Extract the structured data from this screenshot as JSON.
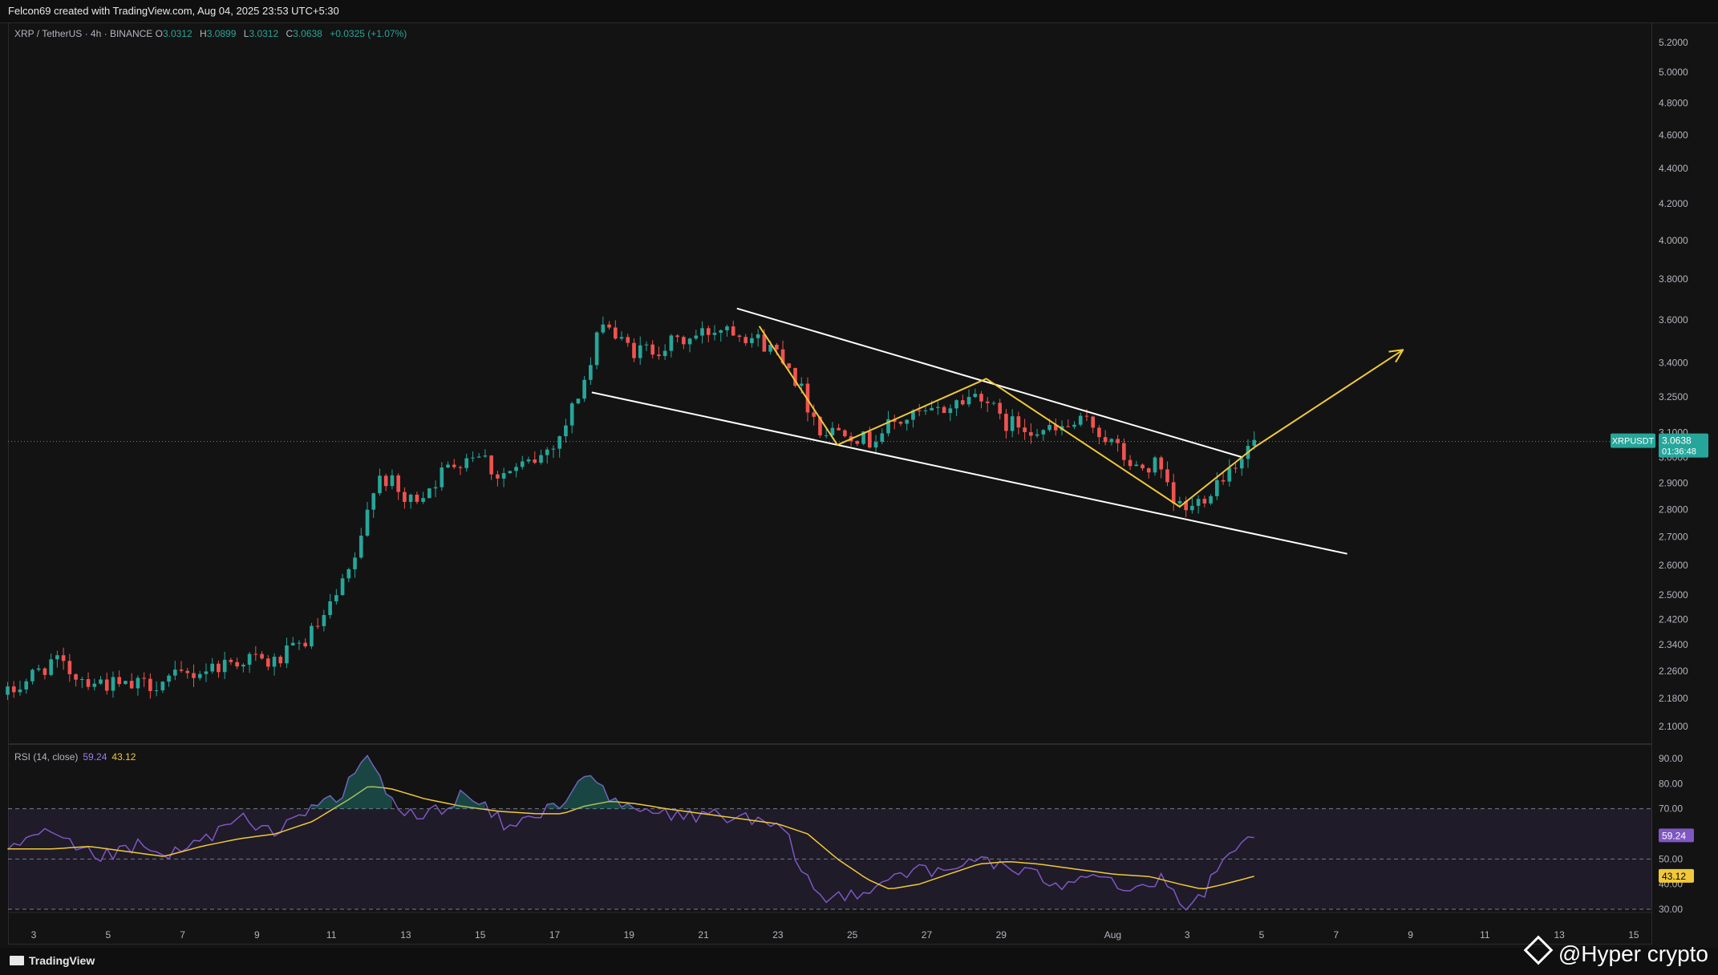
{
  "header": {
    "title": "Felcon69 created with TradingView.com, Aug 04, 2025 23:53 UTC+5:30"
  },
  "symbol_legend": {
    "symbol": "XRP / TetherUS · 4h · BINANCE",
    "open_label": "O",
    "open": "3.0312",
    "high_label": "H",
    "high": "3.0899",
    "low_label": "L",
    "low": "3.0312",
    "close_label": "C",
    "close": "3.0638",
    "change": "+0.0325 (+1.07%)"
  },
  "rsi_legend": {
    "label": "RSI (14, close)",
    "rsi_value": "59.24",
    "ma_value": "43.12"
  },
  "price_tag": {
    "symbol": "XRPUSDT",
    "price": "3.0638",
    "countdown": "01:36:48"
  },
  "footer": {
    "brand": "TradingView",
    "watermark": "@Hyper crypto"
  },
  "colors": {
    "up": "#26a69a",
    "down": "#ef5350",
    "rsi": "#7e57c2",
    "rsi_ma": "#f0c83a",
    "channel": "#ffffff",
    "zigzag": "#f0c83a"
  },
  "chart_data": [
    {
      "type": "candlestick",
      "timeframe": "4h",
      "y_scale": "log",
      "ylim": [
        2.06,
        5.3
      ],
      "xlim_days": [
        2.3,
        15.5
      ],
      "price_ticks": [
        "5.2000",
        "5.0000",
        "4.8000",
        "4.6000",
        "4.4000",
        "4.2000",
        "4.0000",
        "3.8000",
        "3.6000",
        "3.4000",
        "3.2500",
        "3.1000",
        "3.0000",
        "2.9000",
        "2.8000",
        "2.7000",
        "2.6000",
        "2.5000",
        "2.4200",
        "2.3400",
        "2.2600",
        "2.1800",
        "2.1000"
      ],
      "x_ticks": [
        {
          "label": "3",
          "day": 3
        },
        {
          "label": "5",
          "day": 5
        },
        {
          "label": "7",
          "day": 7
        },
        {
          "label": "9",
          "day": 9
        },
        {
          "label": "11",
          "day": 11
        },
        {
          "label": "13",
          "day": 13
        },
        {
          "label": "15",
          "day": 15
        },
        {
          "label": "17",
          "day": 17
        },
        {
          "label": "19",
          "day": 19
        },
        {
          "label": "21",
          "day": 21
        },
        {
          "label": "23",
          "day": 23
        },
        {
          "label": "25",
          "day": 25
        },
        {
          "label": "27",
          "day": 27
        },
        {
          "label": "29",
          "day": 29
        },
        {
          "label": "Aug",
          "day": 32
        },
        {
          "label": "3",
          "day": 34
        },
        {
          "label": "5",
          "day": 36
        },
        {
          "label": "7",
          "day": 38
        },
        {
          "label": "9",
          "day": 40
        },
        {
          "label": "11",
          "day": 42
        },
        {
          "label": "13",
          "day": 44
        },
        {
          "label": "15",
          "day": 46
        }
      ],
      "x_unit": "days since Jul 1, 2025",
      "price_anchors": [
        [
          2.3,
          2.19
        ],
        [
          3.0,
          2.25
        ],
        [
          3.5,
          2.29
        ],
        [
          4.3,
          2.24
        ],
        [
          5.5,
          2.21
        ],
        [
          6.5,
          2.23
        ],
        [
          7.2,
          2.25
        ],
        [
          8.0,
          2.28
        ],
        [
          8.8,
          2.3
        ],
        [
          9.4,
          2.28
        ],
        [
          10.2,
          2.34
        ],
        [
          10.8,
          2.42
        ],
        [
          11.4,
          2.55
        ],
        [
          11.8,
          2.68
        ],
        [
          12.2,
          2.94
        ],
        [
          12.6,
          2.9
        ],
        [
          13.0,
          2.82
        ],
        [
          13.5,
          2.87
        ],
        [
          14.0,
          2.94
        ],
        [
          14.4,
          2.99
        ],
        [
          15.0,
          3.03
        ],
        [
          15.4,
          2.93
        ],
        [
          16.0,
          2.95
        ],
        [
          16.6,
          3.0
        ],
        [
          17.2,
          3.1
        ],
        [
          17.6,
          3.25
        ],
        [
          18.0,
          3.4
        ],
        [
          18.3,
          3.62
        ],
        [
          18.7,
          3.5
        ],
        [
          19.2,
          3.45
        ],
        [
          20.0,
          3.48
        ],
        [
          20.8,
          3.52
        ],
        [
          21.6,
          3.58
        ],
        [
          22.3,
          3.52
        ],
        [
          22.8,
          3.47
        ],
        [
          23.2,
          3.43
        ],
        [
          23.7,
          3.25
        ],
        [
          24.2,
          3.1
        ],
        [
          24.8,
          3.12
        ],
        [
          25.4,
          3.06
        ],
        [
          26.0,
          3.13
        ],
        [
          26.7,
          3.17
        ],
        [
          27.2,
          3.18
        ],
        [
          28.0,
          3.24
        ],
        [
          28.5,
          3.27
        ],
        [
          29.0,
          3.14
        ],
        [
          29.6,
          3.13
        ],
        [
          30.4,
          3.1
        ],
        [
          30.9,
          3.13
        ],
        [
          31.4,
          3.14
        ],
        [
          32.0,
          3.05
        ],
        [
          32.6,
          2.95
        ],
        [
          33.2,
          2.97
        ],
        [
          33.6,
          2.82
        ],
        [
          34.1,
          2.8
        ],
        [
          34.5,
          2.86
        ],
        [
          35.0,
          2.94
        ],
        [
          35.4,
          3.0
        ],
        [
          35.8,
          3.06
        ]
      ],
      "annotations": {
        "channel_upper": [
          [
            21.9,
            3.655
          ],
          [
            35.5,
            3.0
          ]
        ],
        "channel_lower": [
          [
            18.0,
            3.27
          ],
          [
            38.3,
            2.64
          ]
        ],
        "zigzag": [
          [
            22.5,
            3.57
          ],
          [
            24.6,
            3.05
          ],
          [
            28.6,
            3.33
          ],
          [
            33.8,
            2.81
          ],
          [
            35.8,
            3.04
          ]
        ],
        "projection_arrow": [
          [
            35.8,
            3.04
          ],
          [
            39.8,
            3.46
          ]
        ]
      }
    },
    {
      "type": "line",
      "title": "RSI (14, close)",
      "ylim": [
        25,
        95
      ],
      "y_ticks": [
        "90.00",
        "80.00",
        "70.00",
        "60.00",
        "50.00",
        "40.00",
        "30.00"
      ],
      "bands": {
        "upper": 70,
        "middle": 50,
        "lower": 30
      },
      "series": [
        {
          "name": "RSI",
          "anchors": [
            [
              2.3,
              53
            ],
            [
              2.8,
              57
            ],
            [
              3.5,
              60
            ],
            [
              4.0,
              55
            ],
            [
              4.6,
              51
            ],
            [
              5.2,
              52
            ],
            [
              5.8,
              55
            ],
            [
              6.4,
              51
            ],
            [
              7.0,
              53
            ],
            [
              7.8,
              60
            ],
            [
              8.6,
              66
            ],
            [
              9.2,
              60
            ],
            [
              10.0,
              66
            ],
            [
              10.6,
              73
            ],
            [
              11.2,
              72
            ],
            [
              11.6,
              84
            ],
            [
              12.0,
              92
            ],
            [
              12.4,
              78
            ],
            [
              12.8,
              70
            ],
            [
              13.4,
              66
            ],
            [
              14.0,
              71
            ],
            [
              14.6,
              76
            ],
            [
              15.2,
              69
            ],
            [
              15.8,
              62
            ],
            [
              16.4,
              67
            ],
            [
              17.0,
              71
            ],
            [
              17.5,
              78
            ],
            [
              18.0,
              86
            ],
            [
              18.4,
              73
            ],
            [
              19.0,
              70
            ],
            [
              19.8,
              68
            ],
            [
              20.6,
              67
            ],
            [
              21.4,
              68
            ],
            [
              22.0,
              66
            ],
            [
              22.6,
              64
            ],
            [
              23.2,
              60
            ],
            [
              23.6,
              47
            ],
            [
              24.2,
              33
            ],
            [
              24.8,
              36
            ],
            [
              25.4,
              38
            ],
            [
              26.0,
              43
            ],
            [
              26.6,
              46
            ],
            [
              27.2,
              44
            ],
            [
              27.8,
              46
            ],
            [
              28.4,
              52
            ],
            [
              28.8,
              48
            ],
            [
              29.4,
              45
            ],
            [
              30.0,
              43
            ],
            [
              30.6,
              40
            ],
            [
              31.2,
              45
            ],
            [
              31.8,
              44
            ],
            [
              32.4,
              37
            ],
            [
              32.8,
              39
            ],
            [
              33.4,
              42
            ],
            [
              33.8,
              30
            ],
            [
              34.2,
              32
            ],
            [
              34.6,
              40
            ],
            [
              35.0,
              48
            ],
            [
              35.4,
              54
            ],
            [
              35.8,
              59.24
            ]
          ]
        },
        {
          "name": "RSI-based MA",
          "anchors": [
            [
              2.3,
              54
            ],
            [
              3.5,
              54
            ],
            [
              4.5,
              55
            ],
            [
              5.5,
              53
            ],
            [
              6.5,
              51
            ],
            [
              7.5,
              55
            ],
            [
              8.5,
              58
            ],
            [
              9.5,
              60
            ],
            [
              10.5,
              65
            ],
            [
              11.5,
              74
            ],
            [
              12.0,
              79
            ],
            [
              12.6,
              78
            ],
            [
              13.5,
              74
            ],
            [
              14.5,
              71
            ],
            [
              15.5,
              69
            ],
            [
              16.5,
              68
            ],
            [
              17.2,
              68
            ],
            [
              17.8,
              71
            ],
            [
              18.5,
              73
            ],
            [
              19.2,
              72
            ],
            [
              20.0,
              70
            ],
            [
              21.0,
              68
            ],
            [
              22.0,
              66
            ],
            [
              23.0,
              64
            ],
            [
              23.8,
              60
            ],
            [
              24.6,
              50
            ],
            [
              25.4,
              42
            ],
            [
              26.0,
              38
            ],
            [
              26.8,
              40
            ],
            [
              27.6,
              44
            ],
            [
              28.4,
              48
            ],
            [
              29.2,
              49
            ],
            [
              30.0,
              48
            ],
            [
              31.0,
              46
            ],
            [
              32.0,
              44
            ],
            [
              33.0,
              43
            ],
            [
              33.8,
              40
            ],
            [
              34.4,
              38
            ],
            [
              35.0,
              40
            ],
            [
              35.8,
              43.12
            ]
          ]
        }
      ]
    }
  ]
}
